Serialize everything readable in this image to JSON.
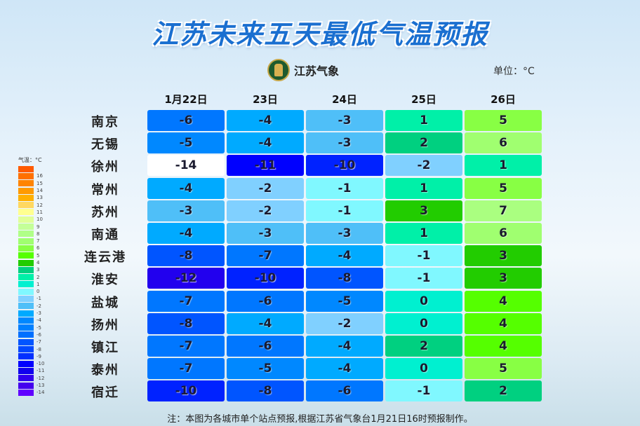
{
  "title": "江苏未来五天最低气温预报",
  "logo_text": "江苏气象",
  "unit": "单位：°C",
  "days": [
    "1月22日",
    "23日",
    "24日",
    "25日",
    "26日"
  ],
  "rows": [
    {
      "city": "南京",
      "values": [
        -6,
        -4,
        -3,
        1,
        5
      ]
    },
    {
      "city": "无锡",
      "values": [
        -5,
        -4,
        -3,
        2,
        6
      ]
    },
    {
      "city": "徐州",
      "values": [
        -14,
        -11,
        -10,
        -2,
        1
      ]
    },
    {
      "city": "常州",
      "values": [
        -4,
        -2,
        -1,
        1,
        5
      ]
    },
    {
      "city": "苏州",
      "values": [
        -3,
        -2,
        -1,
        3,
        7
      ]
    },
    {
      "city": "南通",
      "values": [
        -4,
        -3,
        -3,
        1,
        6
      ]
    },
    {
      "city": "连云港",
      "values": [
        -8,
        -7,
        -4,
        -1,
        3
      ]
    },
    {
      "city": "淮安",
      "values": [
        -12,
        -10,
        -8,
        -1,
        3
      ]
    },
    {
      "city": "盐城",
      "values": [
        -7,
        -6,
        -5,
        0,
        4
      ]
    },
    {
      "city": "扬州",
      "values": [
        -8,
        -4,
        -2,
        0,
        4
      ]
    },
    {
      "city": "镇江",
      "values": [
        -7,
        -6,
        -4,
        2,
        4
      ]
    },
    {
      "city": "泰州",
      "values": [
        -7,
        -5,
        -4,
        0,
        5
      ]
    },
    {
      "city": "宿迁",
      "values": [
        -10,
        -8,
        -6,
        -1,
        2
      ]
    }
  ],
  "cell_colors": {
    "-14": "#ffffff",
    "-13": "#3300ee",
    "-12": "#2200ee",
    "-11": "#0000ff",
    "-10": "#0022ff",
    "-9": "#0040ff",
    "-8": "#0055ff",
    "-7": "#0077ff",
    "-6": "#0077ff",
    "-5": "#0088ff",
    "-4": "#00aaff",
    "-3": "#4fbff8",
    "-2": "#80d0ff",
    "-1": "#80f8ff",
    "0": "#00f0d0",
    "1": "#00f0a8",
    "2": "#00d080",
    "3": "#22cc00",
    "4": "#55ff00",
    "5": "#88ff44",
    "6": "#a0ff70",
    "7": "#aaff80"
  },
  "legend": {
    "title": "气温：°C",
    "items": [
      {
        "label": "",
        "color": "#ff5a00"
      },
      {
        "label": "16",
        "color": "#ff7000"
      },
      {
        "label": "15",
        "color": "#ff8400"
      },
      {
        "label": "14",
        "color": "#ff9a00"
      },
      {
        "label": "13",
        "color": "#ffb000"
      },
      {
        "label": "12",
        "color": "#ffd860"
      },
      {
        "label": "11",
        "color": "#ffff90"
      },
      {
        "label": "10",
        "color": "#e0ff98"
      },
      {
        "label": "9",
        "color": "#c4ff98"
      },
      {
        "label": "8",
        "color": "#b0ff88"
      },
      {
        "label": "7",
        "color": "#a0ff70"
      },
      {
        "label": "6",
        "color": "#88ff44"
      },
      {
        "label": "5",
        "color": "#55ff00"
      },
      {
        "label": "4",
        "color": "#22cc00"
      },
      {
        "label": "3",
        "color": "#00d080"
      },
      {
        "label": "2",
        "color": "#00f0a8"
      },
      {
        "label": "1",
        "color": "#00f0d0"
      },
      {
        "label": "0",
        "color": "#80f8ff"
      },
      {
        "label": "-1",
        "color": "#80d0ff"
      },
      {
        "label": "-2",
        "color": "#4fbff8"
      },
      {
        "label": "-3",
        "color": "#00aaff"
      },
      {
        "label": "-4",
        "color": "#0088ff"
      },
      {
        "label": "-5",
        "color": "#0080ff"
      },
      {
        "label": "-6",
        "color": "#0070ff"
      },
      {
        "label": "-7",
        "color": "#0055ff"
      },
      {
        "label": "-8",
        "color": "#0048ff"
      },
      {
        "label": "-9",
        "color": "#0030ff"
      },
      {
        "label": "-10",
        "color": "#0000ff"
      },
      {
        "label": "-11",
        "color": "#1000ee"
      },
      {
        "label": "-12",
        "color": "#3000ee"
      },
      {
        "label": "-13",
        "color": "#4400ee"
      },
      {
        "label": "-14",
        "color": "#6000ff"
      }
    ]
  },
  "footnote": "注：本图为各城市单个站点预报,根据江苏省气象台1月21日16时预报制作。"
}
